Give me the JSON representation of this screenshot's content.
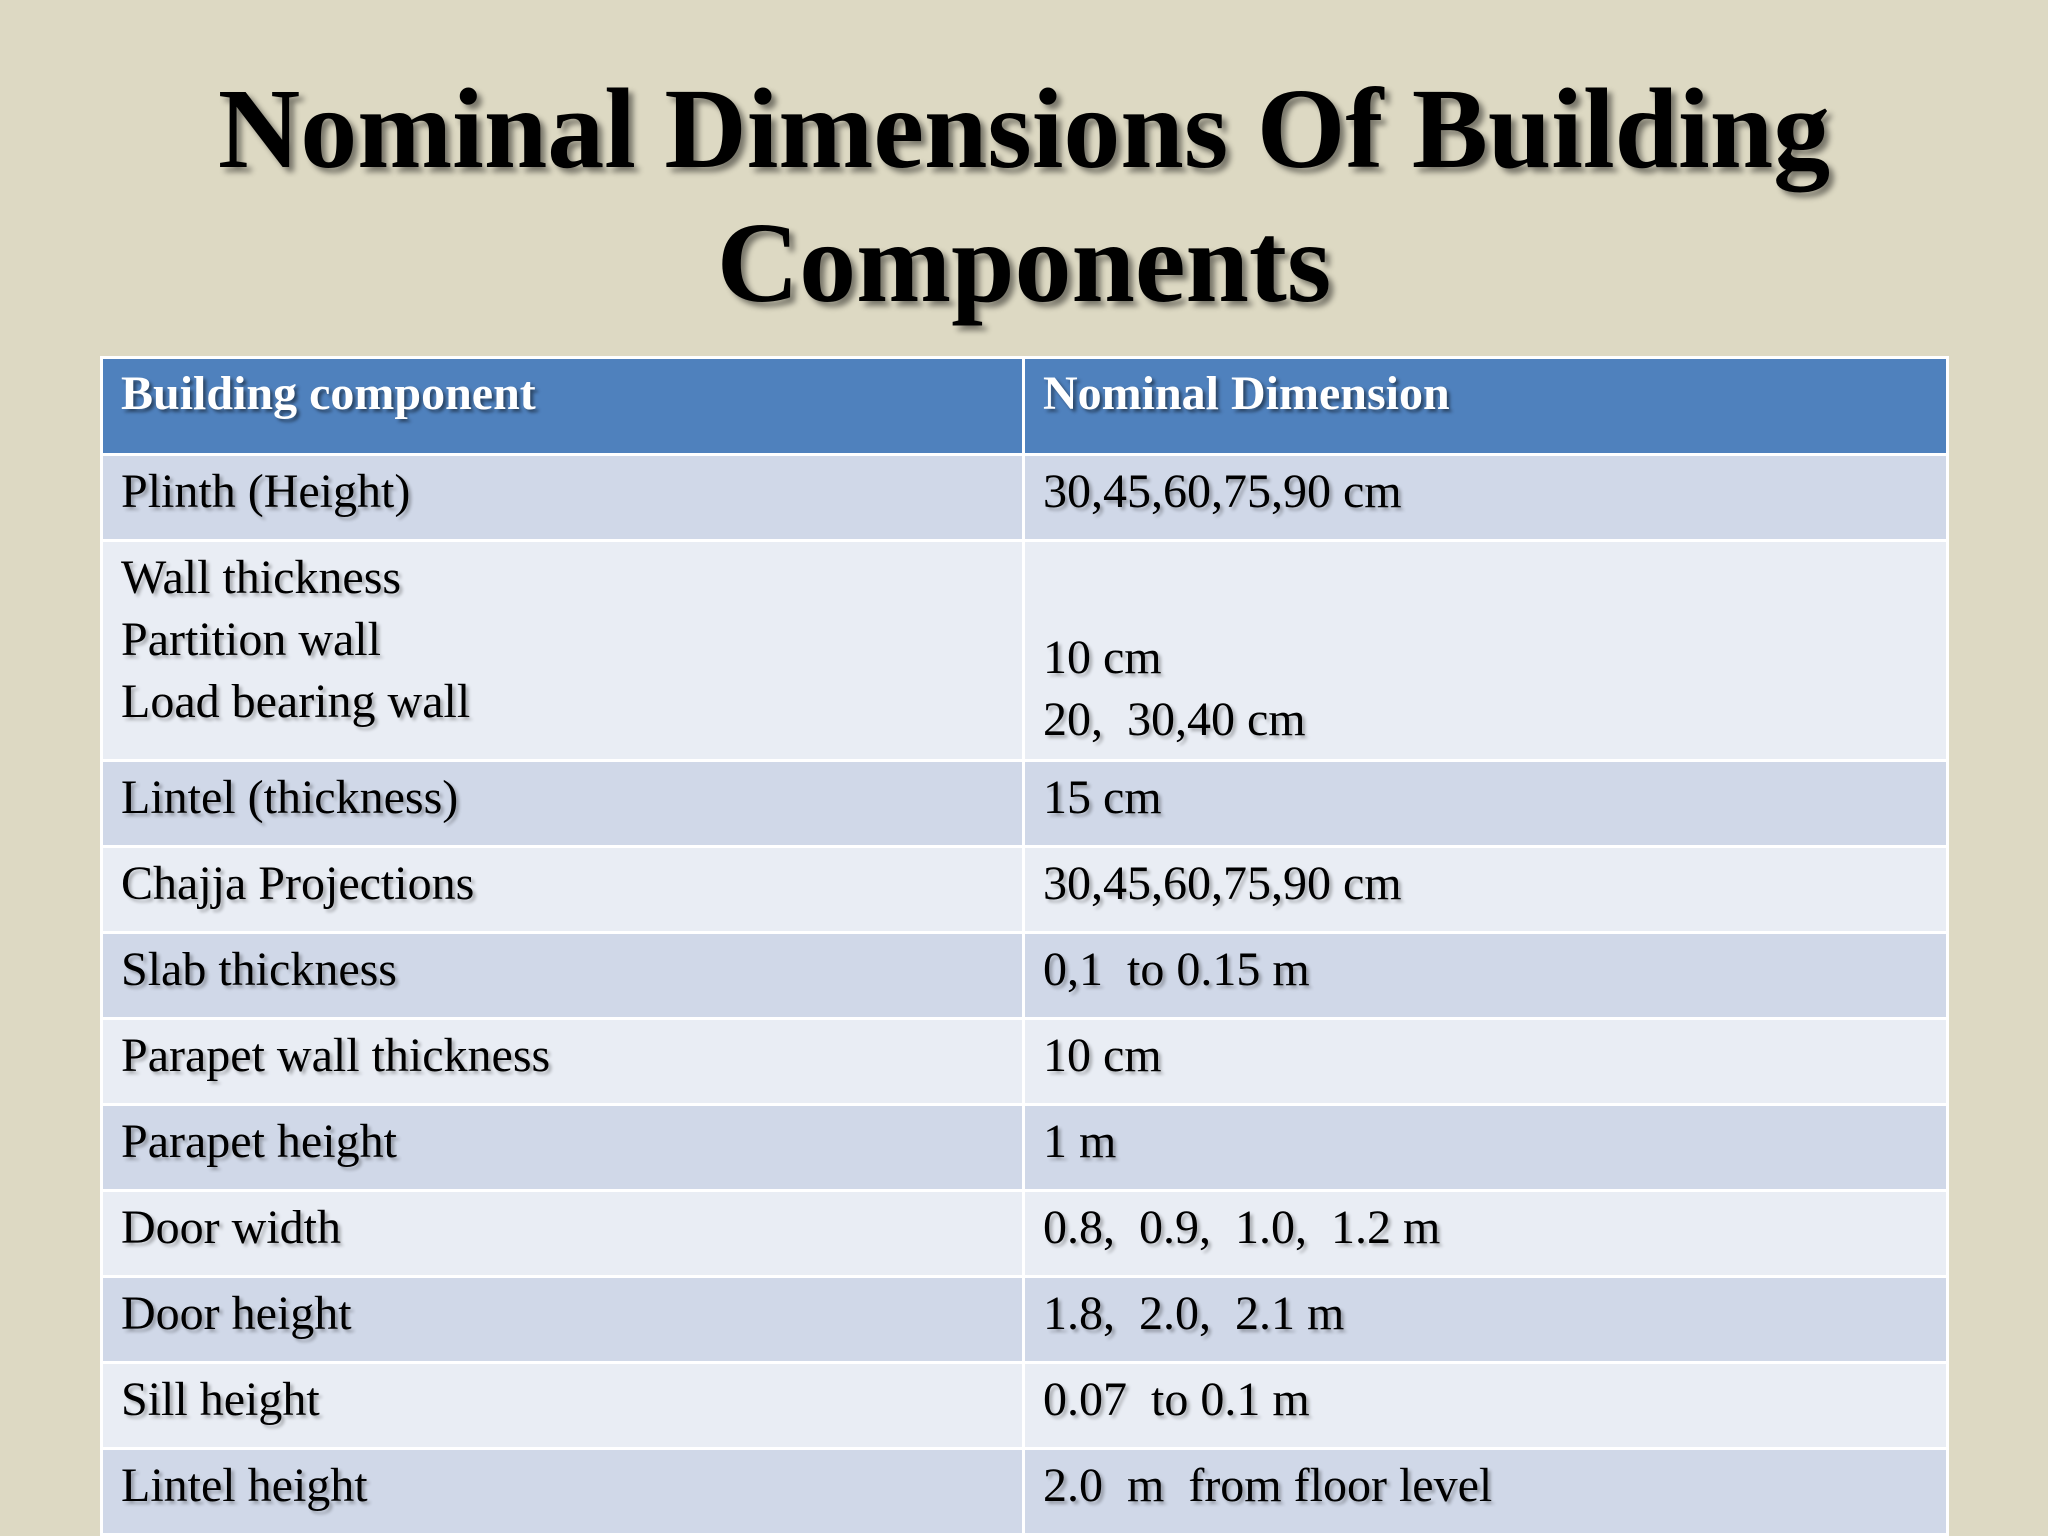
{
  "title": {
    "line1": "Nominal Dimensions Of Building",
    "line2": "Components"
  },
  "table": {
    "headers": [
      "Building component",
      "Nominal Dimension"
    ],
    "rows": [
      [
        "Plinth (Height)",
        "30,45,60,75,90 cm"
      ],
      [
        "Wall thickness",
        ""
      ],
      [
        "Lintel (thickness)",
        "15 cm"
      ],
      [
        "Chajja Projections",
        "30,45,60,75,90 cm"
      ],
      [
        "Slab thickness",
        "0,1  to 0.15 m"
      ],
      [
        "Parapet wall thickness",
        "10 cm"
      ],
      [
        "Parapet height",
        "1 m"
      ],
      [
        "Door width",
        "0.8,  0.9,  1.0,  1.2 m"
      ],
      [
        "Door height",
        "1.8,  2.0,  2.1 m"
      ],
      [
        "Sill height",
        "0.07  to 0.1 m"
      ],
      [
        "Lintel height",
        "2.0  m  from floor level"
      ]
    ],
    "wall_sub": {
      "partition_label": "Partition wall",
      "partition_value": "10 cm",
      "load_bearing_label": "Load bearing wall",
      "load_bearing_value": "20,  30,40 cm"
    }
  },
  "colors": {
    "background": "#ddd9c3",
    "header": "#4f81bd",
    "row_odd": "#d0d8e8",
    "row_even": "#e9edf4"
  }
}
